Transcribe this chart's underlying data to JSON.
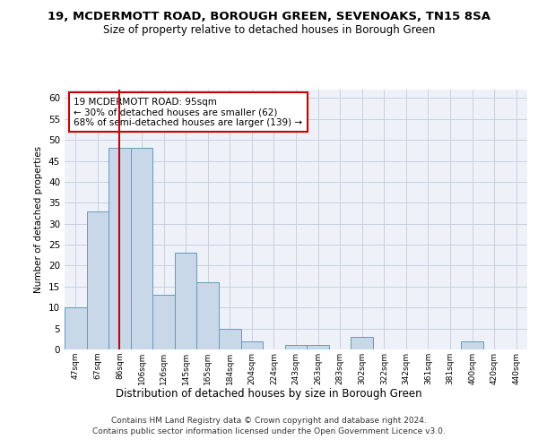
{
  "title": "19, MCDERMOTT ROAD, BOROUGH GREEN, SEVENOAKS, TN15 8SA",
  "subtitle": "Size of property relative to detached houses in Borough Green",
  "xlabel": "Distribution of detached houses by size in Borough Green",
  "ylabel": "Number of detached properties",
  "categories": [
    "47sqm",
    "67sqm",
    "86sqm",
    "106sqm",
    "126sqm",
    "145sqm",
    "165sqm",
    "184sqm",
    "204sqm",
    "224sqm",
    "243sqm",
    "263sqm",
    "283sqm",
    "302sqm",
    "322sqm",
    "342sqm",
    "361sqm",
    "381sqm",
    "400sqm",
    "420sqm",
    "440sqm"
  ],
  "values": [
    10,
    33,
    48,
    48,
    13,
    23,
    16,
    5,
    2,
    0,
    1,
    1,
    0,
    3,
    0,
    0,
    0,
    0,
    2,
    0,
    0
  ],
  "bar_color": "#c8d8e8",
  "bar_edge_color": "#6699bb",
  "ylim": [
    0,
    62
  ],
  "yticks": [
    0,
    5,
    10,
    15,
    20,
    25,
    30,
    35,
    40,
    45,
    50,
    55,
    60
  ],
  "vline_x_index": 2,
  "vline_color": "#cc0000",
  "annotation_text": "19 MCDERMOTT ROAD: 95sqm\n← 30% of detached houses are smaller (62)\n68% of semi-detached houses are larger (139) →",
  "annotation_box_color": "#cc0000",
  "footer_line1": "Contains HM Land Registry data © Crown copyright and database right 2024.",
  "footer_line2": "Contains public sector information licensed under the Open Government Licence v3.0.",
  "background_color": "#eef2f8",
  "grid_color": "#c8d0e0"
}
